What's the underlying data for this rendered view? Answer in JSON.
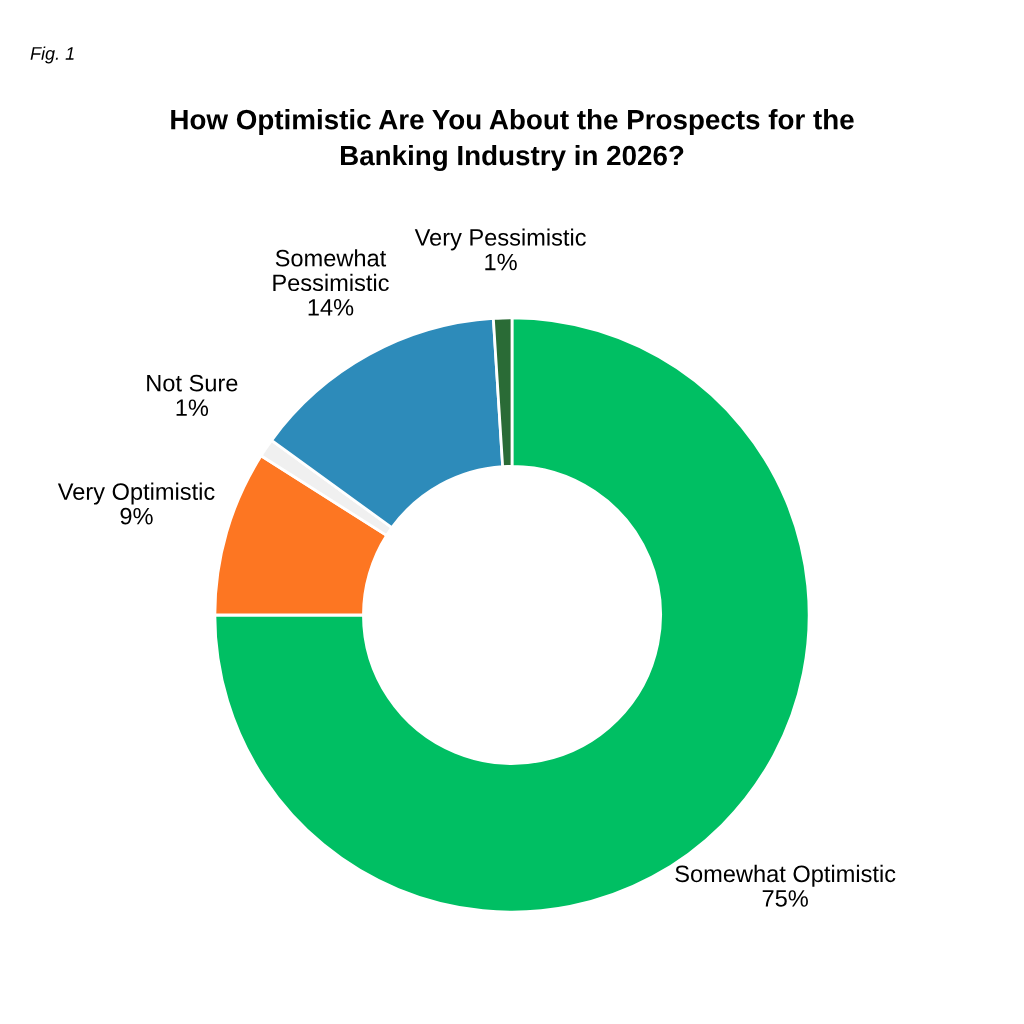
{
  "chart_data": {
    "type": "donut",
    "title": "How Optimistic Are You About the Prospects for the\nBanking Industry in 2026?",
    "annotations": [
      "Fig. 1"
    ],
    "categories": [
      "Somewhat Optimistic",
      "Very Optimistic",
      "Not Sure",
      "Somewhat\nPessimistic",
      "Very Pessimistic"
    ],
    "values": [
      75,
      9,
      1,
      14,
      1
    ],
    "colors": [
      "#00bf63",
      "#fd7622",
      "#f0f0f0",
      "#2d8bba",
      "#2a6b36"
    ],
    "value_labels": [
      "75%",
      "9%",
      "1%",
      "14%",
      "1%"
    ],
    "legend": false
  }
}
